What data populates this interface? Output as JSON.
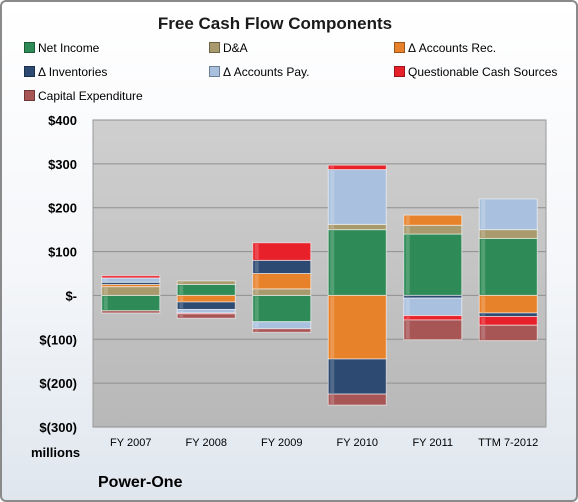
{
  "chart_data": {
    "type": "bar",
    "stacked": true,
    "title": "Free Cash Flow Components",
    "categories": [
      "FY 2007",
      "FY 2008",
      "FY 2009",
      "FY 2010",
      "FY 2011",
      "TTM 7-2012"
    ],
    "ylim": [
      -300,
      400
    ],
    "yticks": [
      -300,
      -200,
      -100,
      0,
      100,
      200,
      300,
      400
    ],
    "ytick_labels": [
      "$(300)",
      "$(200)",
      "$(100)",
      "$-",
      "$100",
      "$200",
      "$300",
      "$400"
    ],
    "yunit_label": "millions",
    "grid": true,
    "legend_position": "top",
    "series": [
      {
        "name": "Net Income",
        "color": "#2e8b57",
        "values": [
          -35,
          25,
          -60,
          150,
          140,
          130
        ]
      },
      {
        "name": "D&A",
        "color": "#a89a6c",
        "values": [
          20,
          8,
          15,
          12,
          20,
          20
        ]
      },
      {
        "name": "Δ Accounts Rec.",
        "color": "#e8822a",
        "values": [
          5,
          -15,
          35,
          -145,
          23,
          -40
        ]
      },
      {
        "name": "Δ Inventories",
        "color": "#2d4a72",
        "values": [
          5,
          -17,
          30,
          -80,
          -6,
          -8
        ]
      },
      {
        "name": "Δ Accounts Pay.",
        "color": "#a9c1df",
        "values": [
          10,
          -8,
          -16,
          125,
          -40,
          70
        ]
      },
      {
        "name": "Questionable Cash Sources",
        "color": "#e8202a",
        "values": [
          5,
          -2,
          40,
          10,
          -10,
          -20
        ]
      },
      {
        "name": "Capital Expenditure",
        "color": "#a85555",
        "values": [
          -5,
          -10,
          -8,
          -25,
          -45,
          -35
        ]
      }
    ]
  },
  "footer": {
    "company": "Power-One"
  }
}
